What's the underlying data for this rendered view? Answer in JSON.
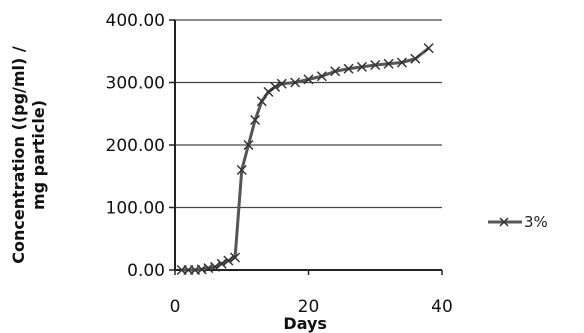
{
  "chart_data": {
    "type": "line",
    "title": "",
    "xlabel": "Days",
    "ylabel": "Concentration ((pg/ml) / mg particle)",
    "ylabel_lines": [
      "Concentration ((pg/ml) /",
      "mg particle)"
    ],
    "xlim": [
      0,
      40
    ],
    "ylim": [
      0,
      400
    ],
    "x_ticks": [
      0,
      20,
      40
    ],
    "y_ticks": [
      0,
      100,
      200,
      300,
      400
    ],
    "x_tick_labels": [
      "0",
      "20",
      "40"
    ],
    "y_tick_labels": [
      "0.00",
      "100.00",
      "200.00",
      "300.00",
      "400.00"
    ],
    "grid": true,
    "legend_position": "right",
    "series": [
      {
        "name": "3%",
        "color": "#555555",
        "marker": "x",
        "x": [
          1,
          2,
          3,
          4,
          5,
          6,
          7,
          8,
          9,
          10,
          11,
          12,
          13,
          14,
          15,
          16,
          18,
          20,
          22,
          24,
          26,
          28,
          30,
          32,
          34,
          36,
          38
        ],
        "y": [
          0,
          0,
          0,
          1,
          3,
          5,
          10,
          15,
          20,
          160,
          200,
          240,
          270,
          285,
          293,
          298,
          300,
          305,
          310,
          318,
          322,
          325,
          328,
          330,
          332,
          338,
          355
        ]
      }
    ]
  }
}
